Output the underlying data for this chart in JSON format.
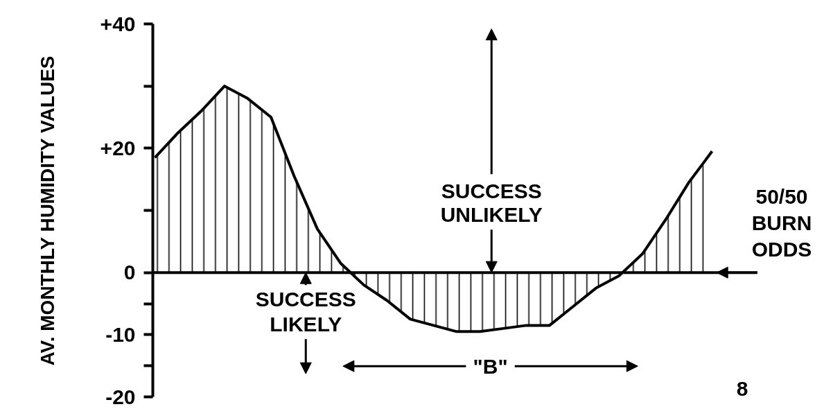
{
  "chart_data": {
    "type": "area",
    "ylabel": "AV. MONTHLY HUMIDITY VALUES",
    "categories": [
      null,
      null,
      null,
      null,
      null,
      null,
      null,
      null,
      null,
      null,
      null,
      null,
      null,
      null,
      null,
      null,
      null,
      null,
      null,
      null,
      null,
      null,
      null,
      null,
      null
    ],
    "series": [
      {
        "color": "#000000",
        "values": [
          18.5,
          22.5,
          26,
          30,
          28,
          25,
          15.5,
          7,
          1.5,
          -2,
          -4.5,
          -7.5,
          -8.5,
          -9.5,
          -9.5,
          -9,
          -8.5,
          -8.5,
          -5.5,
          -2.5,
          -0.5,
          3,
          8.5,
          14.5,
          19.5
        ]
      }
    ],
    "ylim": [
      -20,
      40
    ],
    "yticks": [
      {
        "value": 40,
        "label": "+40"
      },
      {
        "value": 30,
        "label": null
      },
      {
        "value": 20,
        "label": "+20"
      },
      {
        "value": 10,
        "label": null
      },
      0,
      {
        "value": -5,
        "label": null
      },
      -10,
      {
        "value": -15,
        "label": null
      },
      -20
    ],
    "ref_lines": [
      {
        "axis": "y",
        "value": 0,
        "label": "50/50 BURN ODDS"
      }
    ],
    "annotations": [
      "SUCCESS UNLIKELY",
      "SUCCESS LIKELY",
      "\"B\"",
      "8"
    ],
    "tick_labels": "y"
  }
}
